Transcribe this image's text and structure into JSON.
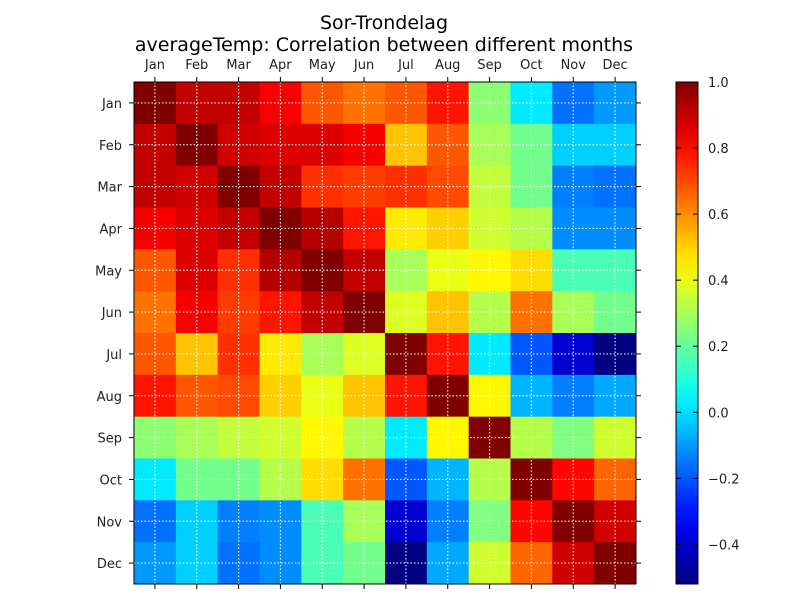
{
  "chart_data": {
    "type": "heatmap",
    "title": "Sor-Trondelag",
    "subtitle": "averageTemp: Correlation between different months",
    "x_labels": [
      "Jan",
      "Feb",
      "Mar",
      "Apr",
      "May",
      "Jun",
      "Jul",
      "Aug",
      "Sep",
      "Oct",
      "Nov",
      "Dec"
    ],
    "y_labels": [
      "Jan",
      "Feb",
      "Mar",
      "Apr",
      "May",
      "Jun",
      "Jul",
      "Aug",
      "Sep",
      "Oct",
      "Nov",
      "Dec"
    ],
    "colorbar": {
      "colormap": "jet",
      "range": [
        -0.52,
        1.0
      ],
      "ticks": [
        1.0,
        0.8,
        0.6,
        0.4,
        0.2,
        0.0,
        -0.2,
        -0.4
      ],
      "tick_labels": [
        "1.0",
        "0.8",
        "0.6",
        "0.4",
        "0.2",
        "0.0",
        "−0.2",
        "−0.4"
      ]
    },
    "grid": true,
    "matrix": [
      [
        1.0,
        0.9,
        0.9,
        0.82,
        0.68,
        0.64,
        0.68,
        0.78,
        0.26,
        0.02,
        -0.16,
        -0.1
      ],
      [
        0.9,
        1.0,
        0.88,
        0.86,
        0.86,
        0.82,
        0.52,
        0.68,
        0.3,
        0.22,
        -0.02,
        -0.02
      ],
      [
        0.9,
        0.88,
        1.0,
        0.9,
        0.74,
        0.72,
        0.74,
        0.7,
        0.34,
        0.22,
        -0.14,
        -0.16
      ],
      [
        0.82,
        0.86,
        0.9,
        1.0,
        0.92,
        0.78,
        0.46,
        0.5,
        0.36,
        0.32,
        -0.12,
        -0.12
      ],
      [
        0.68,
        0.86,
        0.74,
        0.92,
        1.0,
        0.9,
        0.3,
        0.4,
        0.44,
        0.48,
        0.16,
        0.16
      ],
      [
        0.64,
        0.82,
        0.72,
        0.78,
        0.9,
        1.0,
        0.38,
        0.52,
        0.32,
        0.64,
        0.3,
        0.22
      ],
      [
        0.68,
        0.52,
        0.74,
        0.46,
        0.3,
        0.38,
        1.0,
        0.78,
        0.02,
        -0.2,
        -0.4,
        -0.52
      ],
      [
        0.78,
        0.68,
        0.7,
        0.5,
        0.4,
        0.52,
        0.78,
        1.0,
        0.44,
        -0.06,
        -0.14,
        -0.08
      ],
      [
        0.26,
        0.3,
        0.34,
        0.36,
        0.44,
        0.32,
        0.02,
        0.44,
        1.0,
        0.32,
        0.24,
        0.36
      ],
      [
        0.02,
        0.22,
        0.22,
        0.32,
        0.48,
        0.64,
        -0.2,
        -0.06,
        0.32,
        1.0,
        0.8,
        0.66
      ],
      [
        -0.16,
        -0.02,
        -0.14,
        -0.12,
        0.16,
        0.3,
        -0.4,
        -0.14,
        0.24,
        0.8,
        1.0,
        0.88
      ],
      [
        -0.1,
        -0.02,
        -0.16,
        -0.12,
        0.16,
        0.22,
        -0.52,
        -0.08,
        0.36,
        0.66,
        0.88,
        1.0
      ]
    ]
  }
}
